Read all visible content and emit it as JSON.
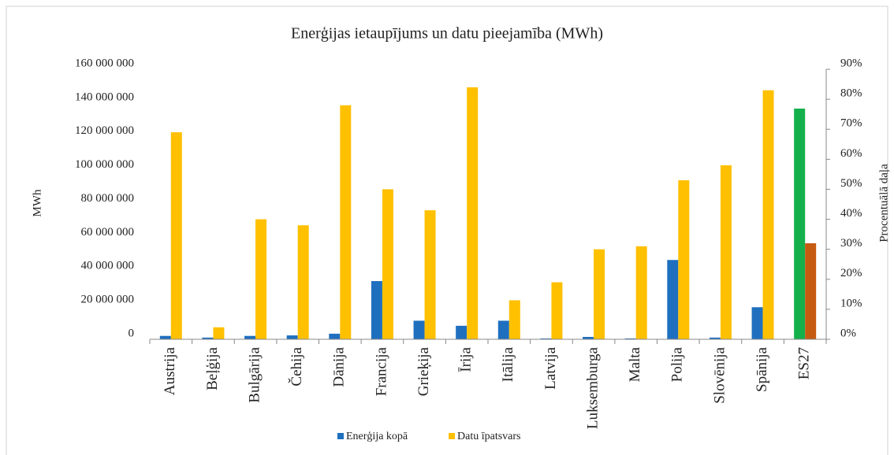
{
  "chart_data": {
    "type": "bar",
    "title": "Enerģijas ietaupījums un datu pieejamība (MWh)",
    "y_label": "MWh",
    "y2_label": "Procentuālā daļa",
    "categories": [
      "Austrija",
      "Beļģija",
      "Bulgārija",
      "Čehija",
      "Dānija",
      "Francija",
      "Grieķija",
      "Īrija",
      "Itālija",
      "Latvija",
      "Luksemburga",
      "Malta",
      "Polija",
      "Slovēnija",
      "Spānija",
      "ES27"
    ],
    "series": [
      {
        "name": "Enerģija kopā",
        "color": "#1f6fbf",
        "axis": "y",
        "colors": [
          "#1f6fbf",
          "#1f6fbf",
          "#1f6fbf",
          "#1f6fbf",
          "#1f6fbf",
          "#1f6fbf",
          "#1f6fbf",
          "#1f6fbf",
          "#1f6fbf",
          "#1f6fbf",
          "#1f6fbf",
          "#1f6fbf",
          "#1f6fbf",
          "#1f6fbf",
          "#1f6fbf",
          "#13b04b"
        ],
        "values": [
          2000000,
          1000000,
          2000000,
          2300000,
          3300000,
          34500000,
          11000000,
          8000000,
          11000000,
          500000,
          1400000,
          500000,
          47000000,
          1000000,
          19000000,
          136700000
        ]
      },
      {
        "name": "Datu īpatsvars",
        "color": "#ffc000",
        "axis": "y2",
        "colors": [
          "#ffc000",
          "#ffc000",
          "#ffc000",
          "#ffc000",
          "#ffc000",
          "#ffc000",
          "#ffc000",
          "#ffc000",
          "#ffc000",
          "#ffc000",
          "#ffc000",
          "#ffc000",
          "#ffc000",
          "#ffc000",
          "#ffc000",
          "#c55a11"
        ],
        "values": [
          69,
          4,
          40,
          38,
          78,
          50,
          43,
          84,
          13,
          19,
          30,
          31,
          53,
          58,
          83,
          32
        ]
      }
    ],
    "ylim": [
      0,
      160000000
    ],
    "yticks": [
      0,
      {
        "value": 20000000,
        "label": "20 000 000"
      },
      {
        "value": 40000000,
        "label": "40 000 000"
      },
      {
        "value": 60000000,
        "label": "60 000 000"
      },
      {
        "value": 80000000,
        "label": "80 000 000"
      },
      {
        "value": 100000000,
        "label": "100 000 000"
      },
      {
        "value": 120000000,
        "label": "120 000 000"
      },
      {
        "value": 140000000,
        "label": "140 000 000"
      },
      {
        "value": 160000000,
        "label": "160 000 000"
      }
    ],
    "y2lim": [
      0,
      90
    ],
    "y2ticks": [
      {
        "value": 0,
        "label": "0%"
      },
      {
        "value": 10,
        "label": "10%"
      },
      {
        "value": 20,
        "label": "20%"
      },
      {
        "value": 30,
        "label": "30%"
      },
      {
        "value": 40,
        "label": "40%"
      },
      {
        "value": 50,
        "label": "50%"
      },
      {
        "value": 60,
        "label": "60%"
      },
      {
        "value": 70,
        "label": "70%"
      },
      {
        "value": 80,
        "label": "80%"
      },
      {
        "value": 90,
        "label": "90%"
      }
    ],
    "grid": false,
    "legend": "bottom"
  }
}
